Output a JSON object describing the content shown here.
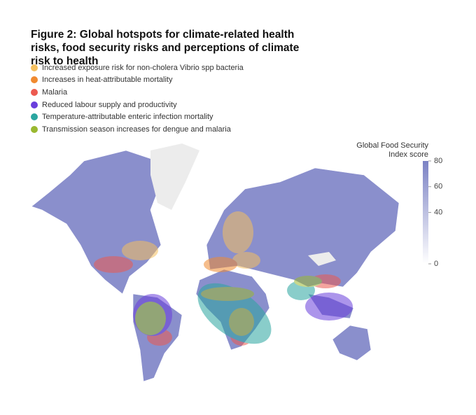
{
  "title": "Figure 2: Global hotspots for climate-related health risks, food security risks and perceptions of climate risk to health",
  "legend": [
    {
      "label": "Increased exposure risk for non-cholera Vibrio spp bacteria",
      "color": "#f5c060"
    },
    {
      "label": "Increases in heat-attributable mortality",
      "color": "#f08a30"
    },
    {
      "label": "Malaria",
      "color": "#ec5a50"
    },
    {
      "label": "Reduced labour supply and productivity",
      "color": "#6a3fdc"
    },
    {
      "label": "Temperature-attributable enteric infection mortality",
      "color": "#2aa6a0"
    },
    {
      "label": "Transmission season increases for dengue and malaria",
      "color": "#9ab830"
    }
  ],
  "colorbar": {
    "title": "Global Food Security Index score",
    "range": [
      0,
      80
    ],
    "ticks": [
      0,
      40,
      60,
      80
    ],
    "color": "#7b82c4"
  }
}
